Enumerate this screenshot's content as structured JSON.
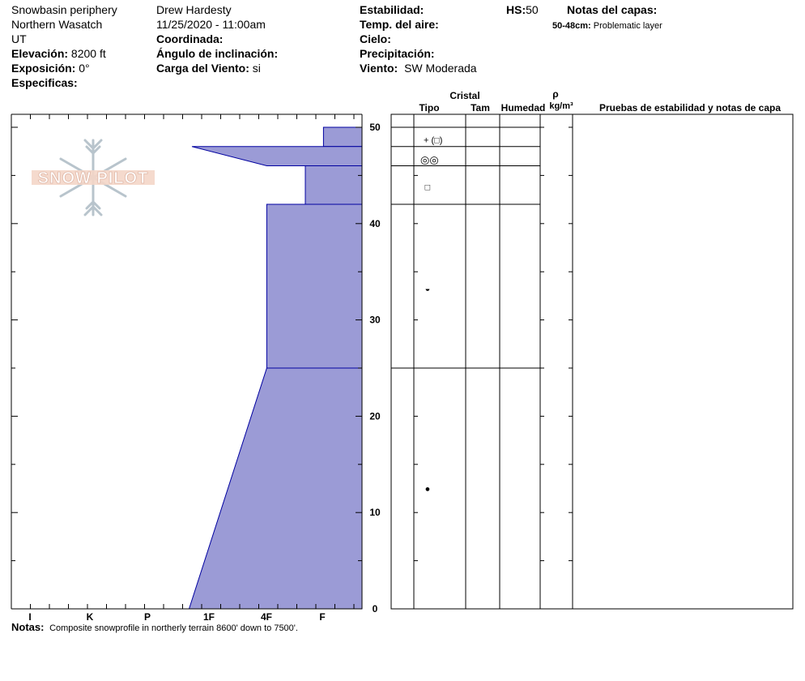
{
  "header": {
    "location": "Snowbasin periphery",
    "range": "Northern Wasatch",
    "state": "UT",
    "elevation_label": "Elevación:",
    "elevation_value": "8200 ft",
    "aspect_label": "Exposición:",
    "aspect_value": "0°",
    "specifics_label": "Especificas:",
    "observer": "Drew Hardesty",
    "datetime": "11/25/2020 - 11:00am",
    "coords_label": "Coordinada:",
    "slope_label": "Ángulo de inclinación:",
    "wind_load_label": "Carga del Viento:",
    "wind_load_value": "si",
    "stability_label": "Estabilidad:",
    "air_temp_label": "Temp. del aire:",
    "sky_label": "Cielo:",
    "precip_label": "Precipitación:",
    "wind_label": "Viento:",
    "wind_value": "SW Moderada",
    "hs_label": "HS:",
    "hs_value": "50",
    "layer_notes_label": "Notas del capas:",
    "layer_note_range": "50-48cm:",
    "layer_note_text": "Problematic layer"
  },
  "logo": {
    "text": "SNOW PILOT"
  },
  "columns": {
    "crystal": "Cristal",
    "type": "Tipo",
    "size": "Tam",
    "moisture": "Humedad",
    "density_symbol": "ρ",
    "density_unit": "kg/m³",
    "tests": "Pruebas de estabilidad y notas de capa"
  },
  "notes": {
    "label": "Notas:",
    "text": "Composite snowprofile in northerly terrain 8600' down to 7500'."
  },
  "colors": {
    "fill": "#9b9bd6",
    "stroke": "#0000a0"
  },
  "chart_data": {
    "type": "area",
    "ylabel": "",
    "xlabel": "",
    "ylim": [
      0,
      50
    ],
    "y_ticks": [
      0,
      10,
      20,
      30,
      40,
      50
    ],
    "x_ticks": [
      "I",
      "K",
      "P",
      "1F",
      "4F",
      "F"
    ],
    "hardness_scale": [
      "F",
      "4F",
      "1F",
      "P",
      "K",
      "I"
    ],
    "layers": [
      {
        "bottom": 48,
        "top": 50,
        "hardness_top": "F",
        "hardness_bottom": "F"
      },
      {
        "bottom": 46,
        "top": 48,
        "hardness_top": "1F",
        "hardness_bottom": "4F"
      },
      {
        "bottom": 42,
        "top": 46,
        "hardness_top": "F-4F",
        "hardness_bottom": "F-4F"
      },
      {
        "bottom": 25,
        "top": 42,
        "hardness_top": "4F",
        "hardness_bottom": "4F"
      },
      {
        "bottom": 0,
        "top": 25,
        "hardness_top": "4F",
        "hardness_bottom": "1F"
      }
    ],
    "layer_hardness_index": [
      {
        "bottom": 48,
        "top": 50,
        "h_top": 0.68,
        "h_bot": 0.68
      },
      {
        "bottom": 46,
        "top": 48,
        "h_top": 3.0,
        "h_bot": 1.68
      },
      {
        "bottom": 42,
        "top": 46,
        "h_top": 1.0,
        "h_bot": 1.0
      },
      {
        "bottom": 25,
        "top": 42,
        "h_top": 1.68,
        "h_bot": 1.68
      },
      {
        "bottom": 0,
        "top": 25,
        "h_top": 1.68,
        "h_bot": 3.05
      }
    ],
    "table_boundaries": [
      50,
      48,
      46,
      42,
      25,
      0
    ],
    "grain_symbols": [
      {
        "depth": 48.7,
        "symbol": "+ (□)"
      },
      {
        "depth": 46.6,
        "symbol": "◎◎"
      },
      {
        "depth": 43.8,
        "symbol": "□"
      },
      {
        "depth": 33.3,
        "symbol": "◒"
      },
      {
        "depth": 12.5,
        "symbol": "●"
      }
    ]
  }
}
